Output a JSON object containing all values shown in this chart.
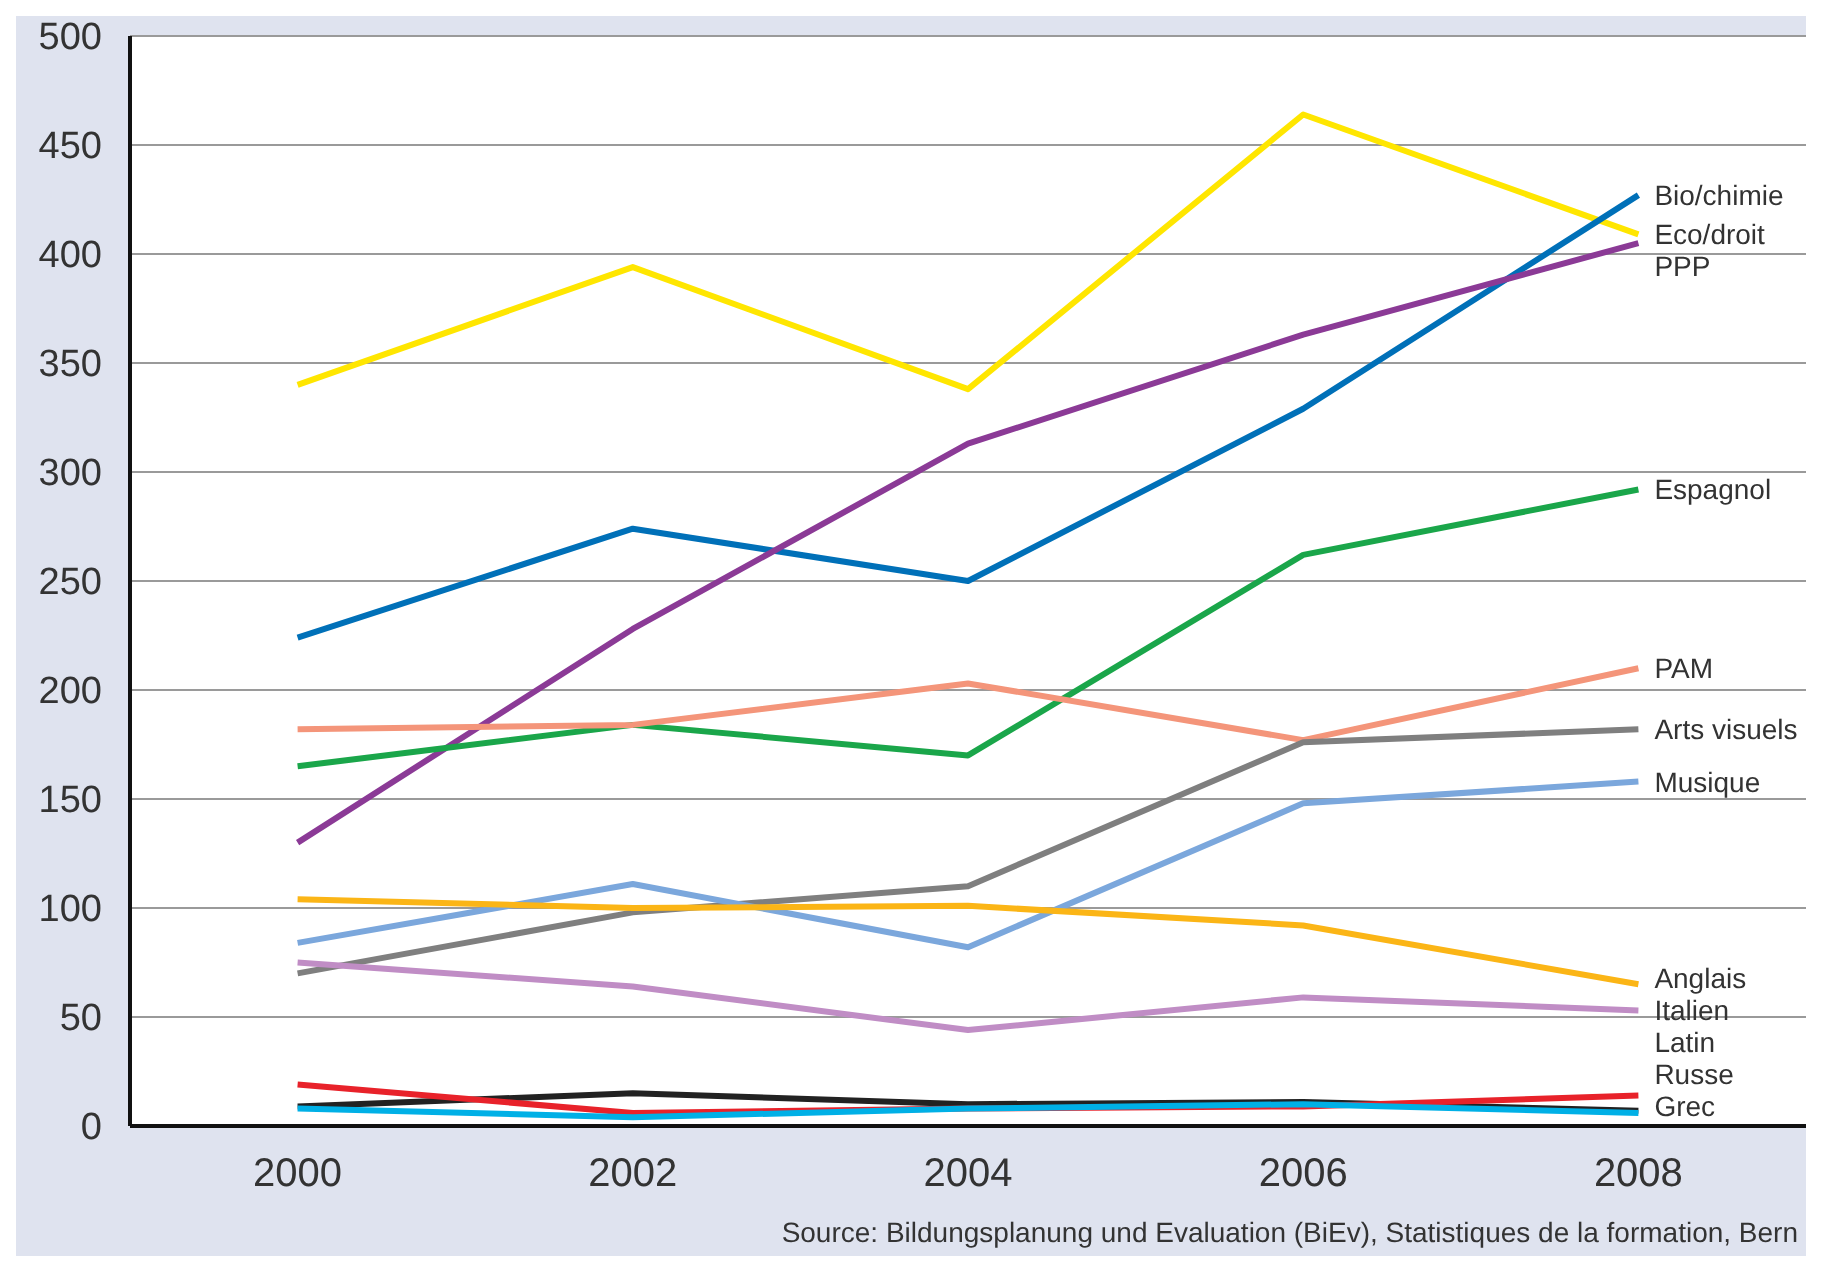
{
  "chart_data": {
    "type": "line",
    "x": [
      2000,
      2002,
      2004,
      2006,
      2008
    ],
    "xlim": [
      1999,
      2009
    ],
    "xticks": [
      2000,
      2002,
      2004,
      2006,
      2008
    ],
    "ylim": [
      0,
      500
    ],
    "yticks": [
      0,
      50,
      100,
      150,
      200,
      250,
      300,
      350,
      400,
      450,
      500
    ],
    "grid": "y",
    "legend": false,
    "marker": "none",
    "line_style": "solid",
    "series": [
      {
        "name": "Eco/droit",
        "color": "#ffe600",
        "values": [
          340,
          394,
          338,
          464,
          409
        ]
      },
      {
        "name": "Bio/chimie",
        "color": "#0070b8",
        "values": [
          224,
          274,
          250,
          329,
          427
        ]
      },
      {
        "name": "PPP",
        "color": "#8b3a96",
        "values": [
          130,
          228,
          313,
          363,
          405
        ]
      },
      {
        "name": "Espagnol",
        "color": "#1aa64a",
        "values": [
          165,
          184,
          170,
          262,
          292
        ]
      },
      {
        "name": "PAM",
        "color": "#f4957a",
        "values": [
          182,
          184,
          203,
          177,
          210
        ]
      },
      {
        "name": "Arts visuels",
        "color": "#7f7f7f",
        "values": [
          70,
          98,
          110,
          176,
          182
        ]
      },
      {
        "name": "Musique",
        "color": "#7ba7dc",
        "values": [
          84,
          111,
          82,
          148,
          158
        ]
      },
      {
        "name": "Anglais",
        "color": "#fbb516",
        "values": [
          104,
          100,
          101,
          92,
          65
        ]
      },
      {
        "name": "Italien",
        "color": "#c08dc5",
        "values": [
          75,
          64,
          44,
          59,
          53
        ]
      },
      {
        "name": "Russe",
        "color": "#222222",
        "values": [
          9,
          15,
          10,
          11,
          7
        ]
      },
      {
        "name": "Latin",
        "color": "#e8222a",
        "values": [
          19,
          6,
          8,
          9,
          14
        ]
      },
      {
        "name": "Grec",
        "color": "#00b0e6",
        "values": [
          8,
          4,
          8,
          10,
          6
        ]
      }
    ],
    "annotations": [
      "Source: Bildungsplanung und Evaluation (BiEv), Statistiques de la formation, Bern"
    ]
  }
}
